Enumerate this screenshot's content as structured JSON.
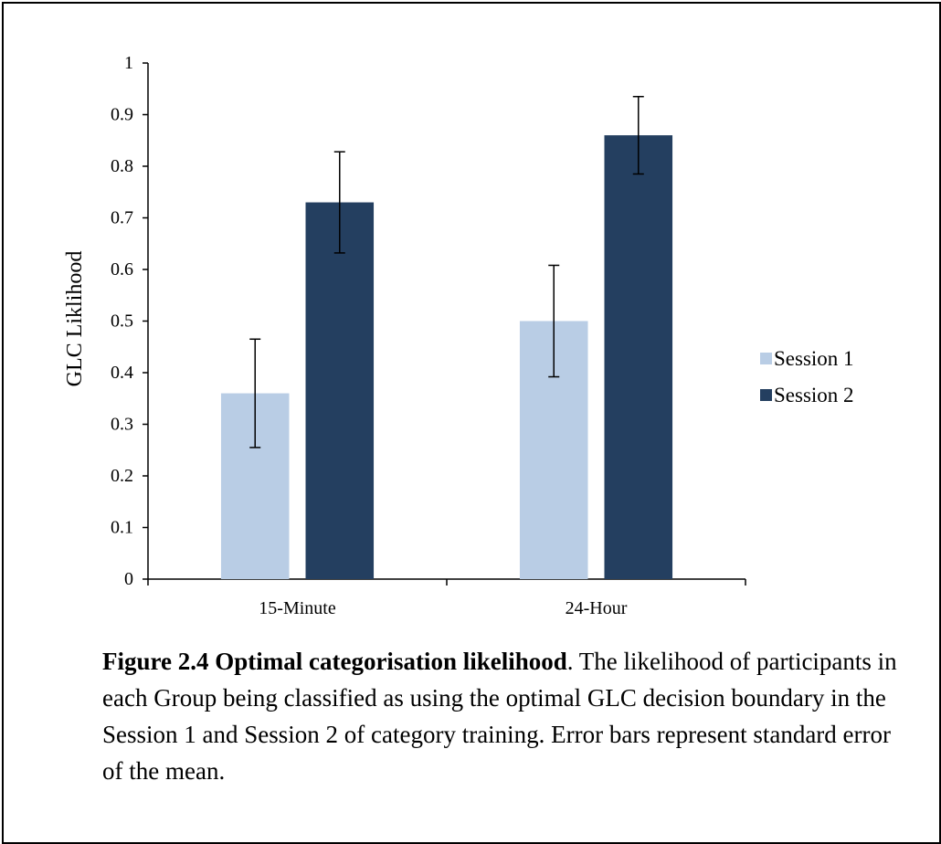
{
  "chart_data": {
    "type": "bar",
    "categories": [
      "15-Minute",
      "24-Hour"
    ],
    "series": [
      {
        "name": "Session 1",
        "color": "#b9cde5",
        "values": [
          0.36,
          0.5
        ],
        "error": [
          0.105,
          0.108
        ]
      },
      {
        "name": "Session 2",
        "color": "#243f60",
        "values": [
          0.73,
          0.86
        ],
        "error": [
          0.098,
          0.075
        ]
      }
    ],
    "title": "",
    "xlabel": "",
    "ylabel": "GLC Liklihood",
    "ylim": [
      0,
      1
    ],
    "yticks": [
      "0",
      "0.1",
      "0.2",
      "0.3",
      "0.4",
      "0.5",
      "0.6",
      "0.7",
      "0.8",
      "0.9",
      "1"
    ],
    "grid": false,
    "legend_position": "right"
  },
  "caption": {
    "label": "Figure 2.4 Optimal categorisation likelihood",
    "text": ". The likelihood of participants in each Group being classified as using the optimal GLC decision boundary in the Session 1 and Session 2 of category training. Error bars represent standard error of the mean."
  }
}
